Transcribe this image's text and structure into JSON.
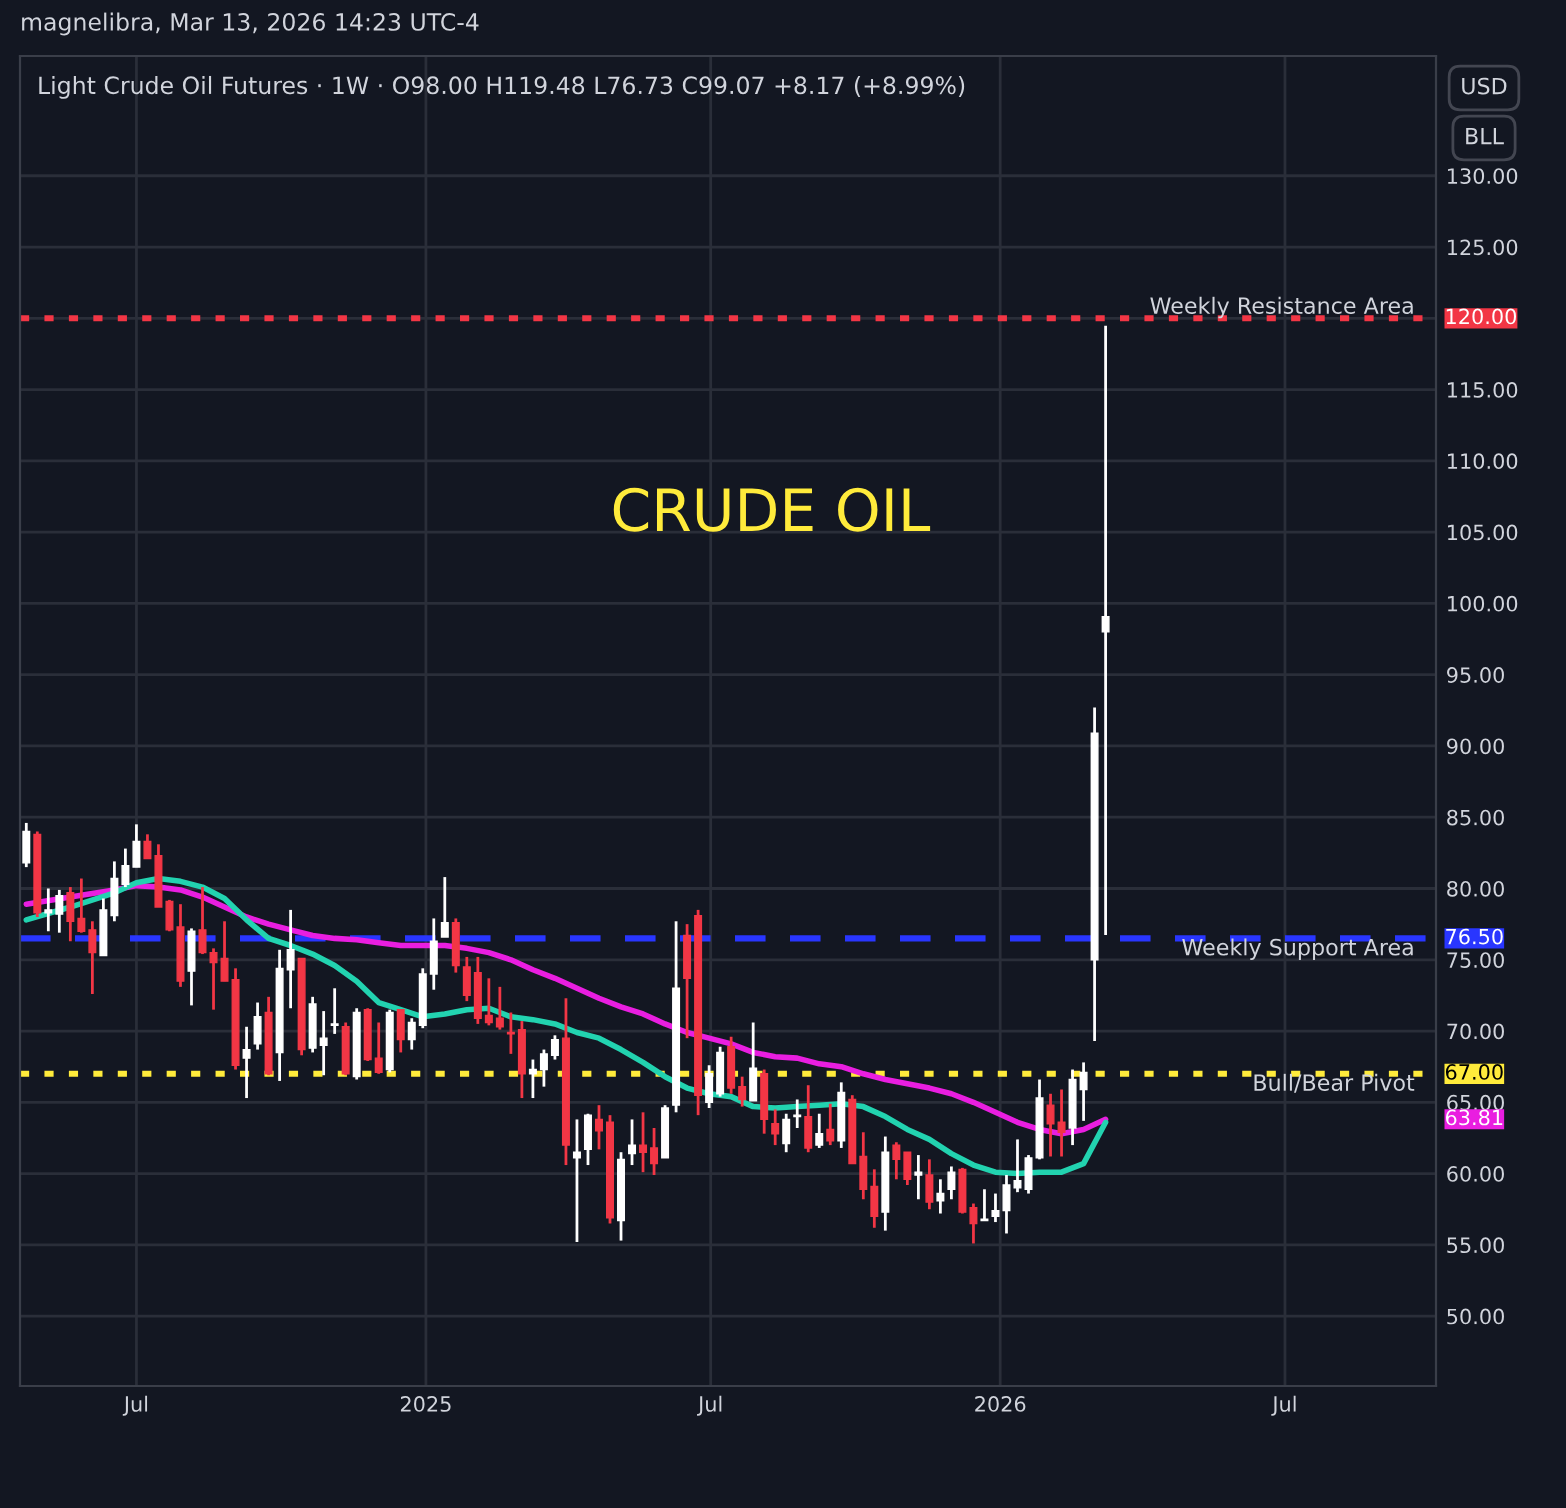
{
  "chart_data": {
    "type": "candlestick",
    "title": "Light Crude Oil Futures · 1W · O98.00 H119.48 L76.73 C99.07 +8.17 (+8.99%)",
    "subtitle": "magnelibra, Mar 13, 2026 14:23 UTC-4",
    "annotations": [
      "CRUDE OIL",
      "USD",
      "BLL",
      "120.00",
      "76.50",
      "67.00",
      "63.81"
    ],
    "x": [
      "2024-04-22",
      "2024-04-29",
      "2024-05-06",
      "2024-05-13",
      "2024-05-20",
      "2024-05-27",
      "2024-06-03",
      "2024-06-10",
      "2024-06-17",
      "2024-06-24",
      "2024-07-01",
      "2024-07-08",
      "2024-07-15",
      "2024-07-22",
      "2024-07-29",
      "2024-08-05",
      "2024-08-12",
      "2024-08-19",
      "2024-08-26",
      "2024-09-02",
      "2024-09-09",
      "2024-09-16",
      "2024-09-23",
      "2024-09-30",
      "2024-10-07",
      "2024-10-14",
      "2024-10-21",
      "2024-10-28",
      "2024-11-04",
      "2024-11-11",
      "2024-11-18",
      "2024-11-25",
      "2024-12-02",
      "2024-12-09",
      "2024-12-16",
      "2024-12-23",
      "2024-12-30",
      "2025-01-06",
      "2025-01-13",
      "2025-01-20",
      "2025-01-27",
      "2025-02-03",
      "2025-02-10",
      "2025-02-17",
      "2025-02-24",
      "2025-03-03",
      "2025-03-10",
      "2025-03-17",
      "2025-03-24",
      "2025-03-31",
      "2025-04-07",
      "2025-04-14",
      "2025-04-21",
      "2025-04-28",
      "2025-05-05",
      "2025-05-12",
      "2025-05-19",
      "2025-05-26",
      "2025-06-02",
      "2025-06-09",
      "2025-06-16",
      "2025-06-23",
      "2025-06-30",
      "2025-07-07",
      "2025-07-14",
      "2025-07-21",
      "2025-07-28",
      "2025-08-04",
      "2025-08-11",
      "2025-08-18",
      "2025-08-25",
      "2025-09-01",
      "2025-09-08",
      "2025-09-15",
      "2025-09-22",
      "2025-09-29",
      "2025-10-06",
      "2025-10-13",
      "2025-10-20",
      "2025-10-27",
      "2025-11-03",
      "2025-11-10",
      "2025-11-17",
      "2025-11-24",
      "2025-12-01",
      "2025-12-08",
      "2025-12-15",
      "2025-12-22",
      "2025-12-29",
      "2026-01-05",
      "2026-01-12",
      "2026-01-19",
      "2026-01-26",
      "2026-02-02",
      "2026-02-09",
      "2026-02-16",
      "2026-02-23",
      "2026-03-02",
      "2026-03-09"
    ],
    "ohlc": [
      [
        81.8,
        84.6,
        81.5,
        84.0
      ],
      [
        83.8,
        84.0,
        78.0,
        78.3
      ],
      [
        78.3,
        80.0,
        77.0,
        78.5
      ],
      [
        78.2,
        79.9,
        76.9,
        79.5
      ],
      [
        79.7,
        80.1,
        76.3,
        77.7
      ],
      [
        77.9,
        80.7,
        76.9,
        77.0
      ],
      [
        77.1,
        77.7,
        72.6,
        75.5
      ],
      [
        75.3,
        79.3,
        75.3,
        78.5
      ],
      [
        78.1,
        81.9,
        77.7,
        80.7
      ],
      [
        80.3,
        82.8,
        80.1,
        81.6
      ],
      [
        81.5,
        84.5,
        81.5,
        83.3
      ],
      [
        83.3,
        83.8,
        82.1,
        82.1
      ],
      [
        82.3,
        83.1,
        78.7,
        78.7
      ],
      [
        79.1,
        79.2,
        77.0,
        77.1
      ],
      [
        77.3,
        78.9,
        73.1,
        73.5
      ],
      [
        74.2,
        77.2,
        71.8,
        77.0
      ],
      [
        77.1,
        80.1,
        75.4,
        75.5
      ],
      [
        75.5,
        75.8,
        71.5,
        74.8
      ],
      [
        75.1,
        77.7,
        73.5,
        73.5
      ],
      [
        73.6,
        74.4,
        67.3,
        67.6
      ],
      [
        68.1,
        70.3,
        65.3,
        68.7
      ],
      [
        69.1,
        72.0,
        68.7,
        71.0
      ],
      [
        71.3,
        72.4,
        66.9,
        67.0
      ],
      [
        68.5,
        75.7,
        66.5,
        74.4
      ],
      [
        74.3,
        78.5,
        71.6,
        75.7
      ],
      [
        75.1,
        75.1,
        68.3,
        68.7
      ],
      [
        68.8,
        72.4,
        68.5,
        71.9
      ],
      [
        69.0,
        71.4,
        66.9,
        69.5
      ],
      [
        70.4,
        73.0,
        69.8,
        70.5
      ],
      [
        70.3,
        70.6,
        66.9,
        67.0
      ],
      [
        66.8,
        71.6,
        66.6,
        71.3
      ],
      [
        71.5,
        71.6,
        67.9,
        68.0
      ],
      [
        68.1,
        70.6,
        67.0,
        67.1
      ],
      [
        67.3,
        71.5,
        67.1,
        71.3
      ],
      [
        71.5,
        71.5,
        68.5,
        69.4
      ],
      [
        69.4,
        70.9,
        68.7,
        70.6
      ],
      [
        70.4,
        74.4,
        70.2,
        74.0
      ],
      [
        74.0,
        77.9,
        72.9,
        76.3
      ],
      [
        76.6,
        80.8,
        76.6,
        77.6
      ],
      [
        77.6,
        77.9,
        74.1,
        74.6
      ],
      [
        74.5,
        75.2,
        72.1,
        72.5
      ],
      [
        74.1,
        75.2,
        70.5,
        70.9
      ],
      [
        71.1,
        73.7,
        70.4,
        70.6
      ],
      [
        70.9,
        73.1,
        70.1,
        70.3
      ],
      [
        69.9,
        71.3,
        68.4,
        69.8
      ],
      [
        70.1,
        70.7,
        65.3,
        67.0
      ],
      [
        67.0,
        68.0,
        65.3,
        67.3
      ],
      [
        67.3,
        68.7,
        66.1,
        68.4
      ],
      [
        68.3,
        69.7,
        68.0,
        69.4
      ],
      [
        69.5,
        72.3,
        60.6,
        62.0
      ],
      [
        61.1,
        63.8,
        55.2,
        61.5
      ],
      [
        61.7,
        64.2,
        60.6,
        64.1
      ],
      [
        63.8,
        64.8,
        61.7,
        63.0
      ],
      [
        63.6,
        64.1,
        56.5,
        56.9
      ],
      [
        56.7,
        61.5,
        55.3,
        61.0
      ],
      [
        61.4,
        63.8,
        60.6,
        62.0
      ],
      [
        62.0,
        64.3,
        60.1,
        61.5
      ],
      [
        61.8,
        63.2,
        59.9,
        60.7
      ],
      [
        61.1,
        64.8,
        61.1,
        64.6
      ],
      [
        64.8,
        77.7,
        64.3,
        73.0
      ],
      [
        76.7,
        77.5,
        69.5,
        73.7
      ],
      [
        78.1,
        78.5,
        64.1,
        65.5
      ],
      [
        65.0,
        67.6,
        64.6,
        67.0
      ],
      [
        65.6,
        68.9,
        65.4,
        68.5
      ],
      [
        68.9,
        69.6,
        65.6,
        66.0
      ],
      [
        66.1,
        66.8,
        64.7,
        65.2
      ],
      [
        65.1,
        70.6,
        65.1,
        67.4
      ],
      [
        67.0,
        67.3,
        62.8,
        63.8
      ],
      [
        63.5,
        64.5,
        62.0,
        62.8
      ],
      [
        62.1,
        64.2,
        61.5,
        63.8
      ],
      [
        64.0,
        65.2,
        63.2,
        64.1
      ],
      [
        64.0,
        66.2,
        61.5,
        61.8
      ],
      [
        62.0,
        64.2,
        61.8,
        62.8
      ],
      [
        63.1,
        64.9,
        62.0,
        62.3
      ],
      [
        62.3,
        66.4,
        61.8,
        65.7
      ],
      [
        65.2,
        65.5,
        60.7,
        60.7
      ],
      [
        61.2,
        62.9,
        58.2,
        58.9
      ],
      [
        59.1,
        60.3,
        56.2,
        57.0
      ],
      [
        57.3,
        62.6,
        56.0,
        61.5
      ],
      [
        62.0,
        62.2,
        59.6,
        61.0
      ],
      [
        61.5,
        61.5,
        59.2,
        59.6
      ],
      [
        59.9,
        61.3,
        58.2,
        60.1
      ],
      [
        59.9,
        61.0,
        57.5,
        58.0
      ],
      [
        58.1,
        59.6,
        57.2,
        58.6
      ],
      [
        58.9,
        60.5,
        58.2,
        60.1
      ],
      [
        60.3,
        60.4,
        57.2,
        57.3
      ],
      [
        57.6,
        57.9,
        55.1,
        56.5
      ],
      [
        56.7,
        58.9,
        56.7,
        56.8
      ],
      [
        57.0,
        58.6,
        56.6,
        57.4
      ],
      [
        57.4,
        59.9,
        55.8,
        59.2
      ],
      [
        59.0,
        62.4,
        58.7,
        59.5
      ],
      [
        58.9,
        61.3,
        58.6,
        61.1
      ],
      [
        61.1,
        66.6,
        61.0,
        65.3
      ],
      [
        64.8,
        65.6,
        61.2,
        63.5
      ],
      [
        63.6,
        65.9,
        61.2,
        62.9
      ],
      [
        63.2,
        67.3,
        62.0,
        66.6
      ],
      [
        65.9,
        67.8,
        63.7,
        67.1
      ],
      [
        75.0,
        92.7,
        69.3,
        90.9
      ],
      [
        98.0,
        119.48,
        76.73,
        99.07
      ]
    ],
    "colors": [
      "#ffffff",
      "#f23645",
      "#ffffff",
      "#ffffff",
      "#f23645",
      "#f23645",
      "#f23645",
      "#ffffff",
      "#ffffff",
      "#ffffff",
      "#ffffff",
      "#f23645",
      "#f23645",
      "#f23645",
      "#f23645",
      "#ffffff",
      "#f23645",
      "#f23645",
      "#f23645",
      "#f23645",
      "#ffffff",
      "#ffffff",
      "#f23645",
      "#ffffff",
      "#ffffff",
      "#f23645",
      "#ffffff",
      "#ffffff",
      "#ffffff",
      "#f23645",
      "#ffffff",
      "#f23645",
      "#f23645",
      "#ffffff",
      "#f23645",
      "#ffffff",
      "#ffffff",
      "#ffffff",
      "#ffffff",
      "#f23645",
      "#f23645",
      "#f23645",
      "#f23645",
      "#f23645",
      "#f23645",
      "#f23645",
      "#ffffff",
      "#ffffff",
      "#ffffff",
      "#f23645",
      "#ffffff",
      "#ffffff",
      "#f23645",
      "#f23645",
      "#ffffff",
      "#ffffff",
      "#f23645",
      "#f23645",
      "#ffffff",
      "#ffffff",
      "#f23645",
      "#f23645",
      "#ffffff",
      "#ffffff",
      "#f23645",
      "#f23645",
      "#ffffff",
      "#f23645",
      "#f23645",
      "#ffffff",
      "#ffffff",
      "#f23645",
      "#ffffff",
      "#f23645",
      "#ffffff",
      "#f23645",
      "#f23645",
      "#f23645",
      "#ffffff",
      "#f23645",
      "#f23645",
      "#ffffff",
      "#f23645",
      "#ffffff",
      "#ffffff",
      "#f23645",
      "#f23645",
      "#ffffff",
      "#ffffff",
      "#ffffff",
      "#ffffff",
      "#ffffff",
      "#ffffff",
      "#f23645",
      "#f23645",
      "#ffffff",
      "#ffffff",
      "#ffffff",
      "#ffffff"
    ],
    "series": [
      {
        "type": "line",
        "color": "#e91ee0",
        "x": [
          "2024-04-22",
          "2024-05-20",
          "2024-06-17",
          "2024-07-01",
          "2024-07-15",
          "2024-07-29",
          "2024-08-12",
          "2024-08-26",
          "2024-09-09",
          "2024-09-23",
          "2024-10-07",
          "2024-10-21",
          "2024-11-04",
          "2024-11-18",
          "2024-12-02",
          "2024-12-16",
          "2024-12-30",
          "2025-01-13",
          "2025-01-27",
          "2025-02-10",
          "2025-02-24",
          "2025-03-10",
          "2025-03-24",
          "2025-04-07",
          "2025-04-21",
          "2025-05-05",
          "2025-05-19",
          "2025-06-02",
          "2025-06-16",
          "2025-06-30",
          "2025-07-14",
          "2025-07-28",
          "2025-08-11",
          "2025-08-25",
          "2025-09-08",
          "2025-09-22",
          "2025-10-06",
          "2025-10-20",
          "2025-11-03",
          "2025-11-17",
          "2025-12-01",
          "2025-12-15",
          "2025-12-29",
          "2026-01-12",
          "2026-01-26",
          "2026-02-09",
          "2026-02-23",
          "2026-03-09"
        ],
        "values": [
          78.9,
          79.4,
          79.9,
          80.2,
          80.1,
          79.9,
          79.4,
          78.7,
          78.0,
          77.5,
          77.1,
          76.7,
          76.5,
          76.4,
          76.2,
          76.0,
          76.0,
          76.0,
          75.8,
          75.5,
          75.0,
          74.3,
          73.7,
          73.0,
          72.3,
          71.7,
          71.2,
          70.5,
          69.9,
          69.5,
          69.1,
          68.5,
          68.2,
          68.1,
          67.7,
          67.5,
          67.0,
          66.6,
          66.3,
          66.0,
          65.6,
          65.0,
          64.3,
          63.6,
          63.1,
          62.8,
          63.1,
          63.81
        ]
      },
      {
        "type": "line",
        "color": "#22d3b0",
        "x": [
          "2024-04-22",
          "2024-05-20",
          "2024-06-17",
          "2024-07-01",
          "2024-07-15",
          "2024-07-29",
          "2024-08-12",
          "2024-08-26",
          "2024-09-09",
          "2024-09-23",
          "2024-10-07",
          "2024-10-21",
          "2024-11-04",
          "2024-11-18",
          "2024-12-02",
          "2024-12-16",
          "2024-12-30",
          "2025-01-13",
          "2025-01-27",
          "2025-02-10",
          "2025-02-24",
          "2025-03-10",
          "2025-03-24",
          "2025-04-07",
          "2025-04-21",
          "2025-05-05",
          "2025-05-19",
          "2025-06-02",
          "2025-06-16",
          "2025-06-30",
          "2025-07-14",
          "2025-07-28",
          "2025-08-11",
          "2025-08-25",
          "2025-09-08",
          "2025-09-22",
          "2025-10-06",
          "2025-10-20",
          "2025-11-03",
          "2025-11-17",
          "2025-12-01",
          "2025-12-15",
          "2025-12-29",
          "2026-01-12",
          "2026-01-26",
          "2026-02-09",
          "2026-02-23",
          "2026-03-09"
        ],
        "values": [
          77.8,
          78.7,
          79.7,
          80.4,
          80.7,
          80.5,
          80.1,
          79.3,
          77.8,
          76.5,
          76.0,
          75.4,
          74.6,
          73.5,
          72.0,
          71.5,
          71.0,
          71.2,
          71.5,
          71.6,
          71.0,
          70.8,
          70.5,
          69.9,
          69.5,
          68.7,
          67.8,
          66.8,
          66.0,
          65.6,
          65.4,
          64.7,
          64.6,
          64.7,
          64.8,
          64.9,
          64.7,
          64.0,
          63.1,
          62.4,
          61.4,
          60.6,
          60.1,
          60.0,
          60.1,
          60.1,
          60.7,
          63.6
        ]
      }
    ],
    "ref_lines": [
      {
        "axis": "y",
        "value": 120,
        "label": "Weekly Resistance Area",
        "color": "#f23645",
        "line_style": "dotted"
      },
      {
        "axis": "y",
        "value": 76.5,
        "label": "Weekly Support Area",
        "color": "#2936ff",
        "line_style": "dashed"
      },
      {
        "axis": "y",
        "value": 67,
        "label": "Bull/Bear Pivot",
        "color": "#ffeb3b",
        "line_style": "dotted"
      }
    ],
    "xlim": [
      "2024-04-18",
      "2026-10-05"
    ],
    "xticks": [
      {
        "value": "2024-07-01",
        "label": "Jul"
      },
      {
        "value": "2025-01-01",
        "label": "2025"
      },
      {
        "value": "2025-07-01",
        "label": "Jul"
      },
      {
        "value": "2026-01-01",
        "label": "2026"
      },
      {
        "value": "2026-07-01",
        "label": "Jul"
      }
    ],
    "ylim": [
      45.1,
      138.4
    ],
    "yticks": [
      {
        "value": 50,
        "label": "50.00"
      },
      {
        "value": 55,
        "label": "55.00"
      },
      {
        "value": 60,
        "label": "60.00"
      },
      {
        "value": 65,
        "label": "65.00"
      },
      {
        "value": 70,
        "label": "70.00"
      },
      {
        "value": 75,
        "label": "75.00"
      },
      {
        "value": 80,
        "label": "80.00"
      },
      {
        "value": 85,
        "label": "85.00"
      },
      {
        "value": 90,
        "label": "90.00"
      },
      {
        "value": 95,
        "label": "95.00"
      },
      {
        "value": 100,
        "label": "100.00"
      },
      {
        "value": 105,
        "label": "105.00"
      },
      {
        "value": 110,
        "label": "110.00"
      },
      {
        "value": 115,
        "label": "115.00"
      },
      {
        "value": 120,
        "label": null
      },
      {
        "value": 125,
        "label": "125.00"
      },
      {
        "value": 130,
        "label": "130.00"
      }
    ],
    "grid": true
  }
}
